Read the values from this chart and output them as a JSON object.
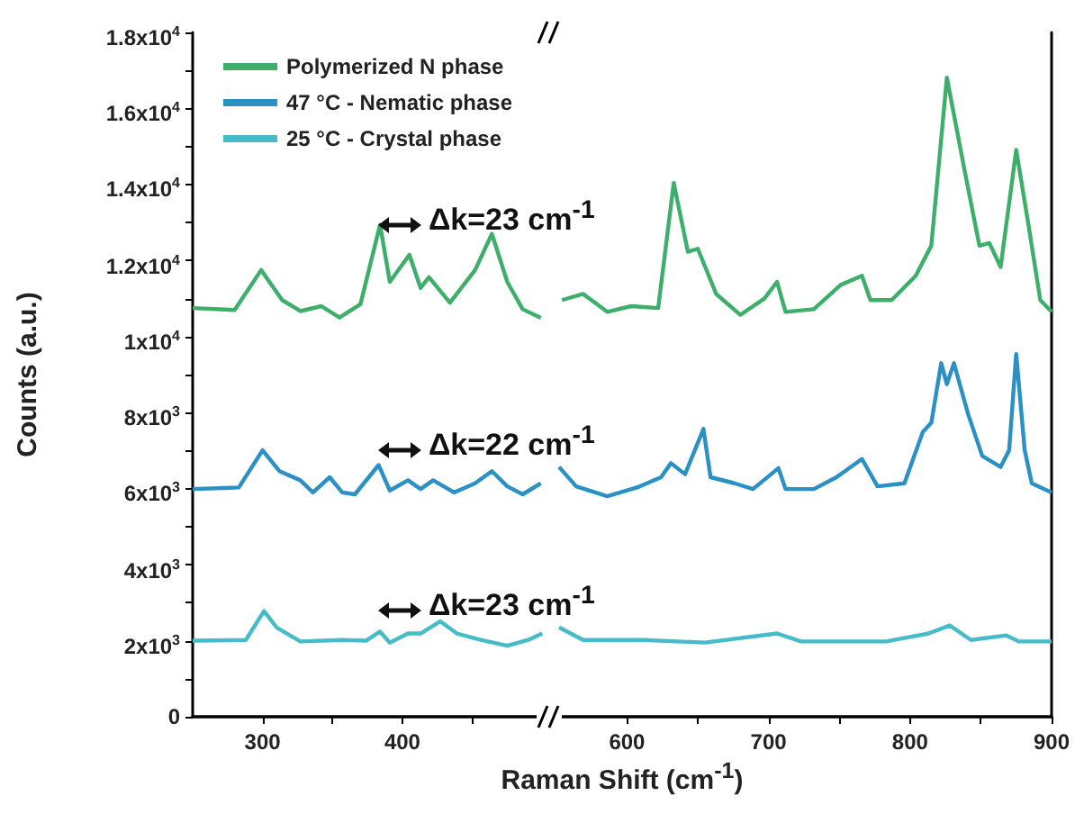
{
  "chart_data": [
    {
      "type": "line",
      "ylabel": "Counts (a.u.)",
      "xlabel": "Raman Shift (cm$^{-1}$)",
      "legend": "top left",
      "marker": "none",
      "line_style": "solid",
      "xlim": [
        250,
        505
      ],
      "xticks": [
        300,
        {
          "value": 350,
          "label": null
        },
        400,
        {
          "value": 450,
          "label": null
        }
      ],
      "ylim": [
        0,
        18000
      ],
      "yticks": [
        0,
        {
          "value": 1000,
          "label": null
        },
        {
          "value": 2000,
          "label": "2x10$^{3}$"
        },
        {
          "value": 3000,
          "label": null
        },
        {
          "value": 4000,
          "label": "4x10$^{3}$"
        },
        {
          "value": 5000,
          "label": null
        },
        {
          "value": 6000,
          "label": "6x10$^{3}$"
        },
        {
          "value": 7000,
          "label": null
        },
        {
          "value": 8000,
          "label": "8x10$^{3}$"
        },
        {
          "value": 9000,
          "label": null
        },
        {
          "value": 10000,
          "label": "1x10$^{4}$"
        },
        {
          "value": 11000,
          "label": null
        },
        {
          "value": 12000,
          "label": "1.2x10$^{4}$"
        },
        {
          "value": 13000,
          "label": null
        },
        {
          "value": 14000,
          "label": "1.4x10$^{4}$"
        },
        {
          "value": 15000,
          "label": null
        },
        {
          "value": 16000,
          "label": "1.6x10$^{4}$"
        },
        {
          "value": 17000,
          "label": null
        },
        {
          "value": 18000,
          "label": "1.8x10$^{4}$"
        }
      ],
      "annotations": [
        "Δk=23 cm$^{-1}$",
        "Δk=22 cm$^{-1}$",
        "Δk=23 cm$^{-1}$"
      ],
      "series": [
        {
          "name": "Polymerized N phase",
          "color": "#3daf6b",
          "x": [
            250,
            280,
            299,
            314,
            327,
            342,
            355,
            370,
            384,
            391,
            405,
            413,
            419,
            434,
            452,
            464,
            475,
            486,
            499
          ],
          "values": [
            10750,
            10700,
            11750,
            10960,
            10670,
            10800,
            10500,
            10850,
            12940,
            11440,
            12150,
            11280,
            11560,
            10890,
            11750,
            12700,
            11440,
            10720,
            10490
          ]
        },
        {
          "name": "47 °C - Nematic phase",
          "color": "#2b90c4",
          "x": [
            250,
            283,
            300,
            312,
            327,
            336,
            348,
            357,
            366,
            383,
            391,
            404,
            413,
            422,
            437,
            452,
            464,
            475,
            486,
            499
          ],
          "values": [
            5990,
            6030,
            7010,
            6460,
            6220,
            5900,
            6300,
            5900,
            5850,
            6620,
            5950,
            6220,
            5990,
            6220,
            5900,
            6140,
            6460,
            6060,
            5850,
            6140
          ]
        },
        {
          "name": "25 °C - Crystal phase",
          "color": "#46bcc8",
          "x": [
            250,
            288,
            301,
            310,
            327,
            357,
            374,
            384,
            391,
            404,
            413,
            427,
            439,
            456,
            475,
            490,
            500
          ],
          "values": [
            2000,
            2020,
            2780,
            2350,
            1980,
            2020,
            2000,
            2240,
            1950,
            2190,
            2190,
            2510,
            2190,
            2020,
            1870,
            2020,
            2190
          ]
        }
      ]
    },
    {
      "type": "line",
      "tick_labels": "x",
      "marker": "none",
      "line_style": "solid",
      "xlim": [
        545,
        900
      ],
      "xticks": [
        600,
        {
          "value": 650,
          "label": null
        },
        700,
        {
          "value": 750,
          "label": null
        },
        800,
        {
          "value": 850,
          "label": null
        },
        900
      ],
      "ylim": [
        0,
        18000
      ],
      "series": [
        {
          "color": "#3daf6b",
          "x": [
            554,
            569,
            586,
            603,
            622,
            633,
            643,
            650,
            663,
            680,
            697,
            706,
            712,
            732,
            751,
            766,
            772,
            787,
            804,
            815,
            826,
            839,
            849,
            856,
            864,
            875,
            884,
            892,
            900
          ],
          "values": [
            10960,
            11120,
            10650,
            10800,
            10750,
            14040,
            12230,
            12310,
            11120,
            10570,
            11000,
            11440,
            10650,
            10720,
            11360,
            11600,
            10960,
            10960,
            11600,
            12390,
            16810,
            14280,
            12390,
            12460,
            11830,
            14910,
            12860,
            10960,
            10650
          ]
        },
        {
          "color": "#2b90c4",
          "x": [
            552,
            564,
            586,
            607,
            624,
            631,
            641,
            654,
            659,
            676,
            689,
            707,
            712,
            732,
            748,
            766,
            777,
            796,
            809,
            815,
            822,
            826,
            831,
            841,
            851,
            864,
            870,
            875,
            881,
            886,
            900
          ],
          "values": [
            6570,
            6060,
            5800,
            6030,
            6300,
            6670,
            6380,
            7570,
            6300,
            6140,
            5990,
            6540,
            5990,
            5990,
            6300,
            6780,
            6060,
            6140,
            7490,
            7730,
            9300,
            8750,
            9300,
            7960,
            6860,
            6570,
            7010,
            9540,
            7010,
            6140,
            5900
          ]
        },
        {
          "color": "#46bcc8",
          "x": [
            552,
            569,
            612,
            655,
            706,
            723,
            783,
            813,
            828,
            843,
            868,
            877,
            900
          ],
          "values": [
            2350,
            2020,
            2020,
            1950,
            2190,
            1980,
            1980,
            2190,
            2400,
            2020,
            2140,
            1980,
            1980
          ]
        }
      ]
    }
  ]
}
